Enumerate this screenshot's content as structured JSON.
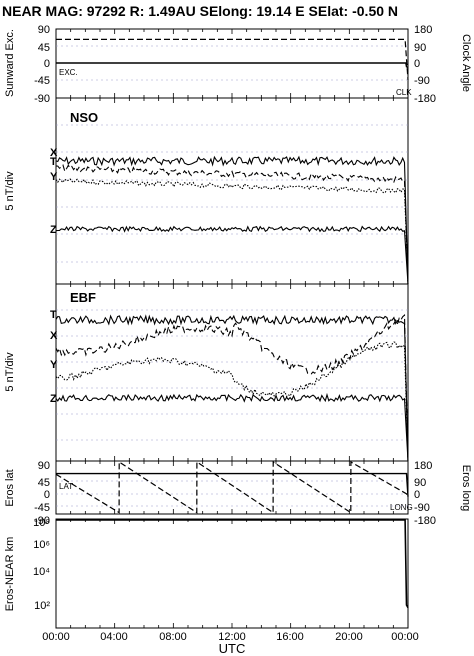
{
  "title": "NEAR MAG: 97292  R: 1.49AU  SElong:   19.14 E  SElat:   -0.50 N",
  "x_axis": {
    "label": "UTC",
    "ticks": [
      "00:00",
      "04:00",
      "08:00",
      "12:00",
      "16:00",
      "20:00",
      "00:00"
    ]
  },
  "chart_data": [
    {
      "type": "line",
      "panel": "sunward-clock",
      "ylabel_left": "Sunward Exc.",
      "ylabel_right": "Clock Angle",
      "left_ticks": [
        "90",
        "45",
        "0",
        "-45",
        "-90"
      ],
      "right_ticks": [
        "180",
        "90",
        "0",
        "-90",
        "-180"
      ],
      "ylim_left": [
        -90,
        90
      ],
      "ylim_right": [
        -180,
        180
      ],
      "x_range_hours": [
        0,
        24
      ],
      "grid": "dotted horizontal",
      "series": [
        {
          "name": "EXC.",
          "style": "solid",
          "x": [
            0,
            23.85,
            23.9,
            24
          ],
          "values": [
            0,
            0,
            -10,
            -12
          ]
        },
        {
          "name": "CLK",
          "style": "dashed",
          "x": [
            0,
            23.8,
            23.9,
            24
          ],
          "values": [
            125,
            125,
            20,
            -90
          ]
        }
      ]
    },
    {
      "type": "line",
      "panel": "NSO",
      "name": "NSO",
      "ylabel": "5 nT/div",
      "x_range_hours": [
        0,
        24
      ],
      "grid": "dotted horizontal",
      "series": [
        {
          "name": "T",
          "style": "solid",
          "level_px": 161,
          "noise": 5
        },
        {
          "name": "X",
          "style": "dashed",
          "level_px": 168,
          "noise": 4,
          "drift": 12
        },
        {
          "name": "Y",
          "style": "dotted",
          "level_px": 181,
          "noise": 3,
          "drift": 10
        },
        {
          "name": "Z",
          "style": "solid",
          "level_px": 229,
          "noise": 3
        }
      ]
    },
    {
      "type": "line",
      "panel": "EBF",
      "name": "EBF",
      "ylabel": "5 nT/div",
      "x_range_hours": [
        0,
        24
      ],
      "grid": "dotted horizontal",
      "series": [
        {
          "name": "T",
          "style": "solid",
          "level_px": 320,
          "noise": 5
        },
        {
          "name": "X",
          "style": "dashed",
          "level_px": 340,
          "noise": 5,
          "swing": 30
        },
        {
          "name": "Y",
          "style": "dotted",
          "level_px": 370,
          "noise": 4,
          "swing": 25
        },
        {
          "name": "Z",
          "style": "solid",
          "level_px": 398,
          "noise": 4
        }
      ]
    },
    {
      "type": "line",
      "panel": "eros-lat-long",
      "ylabel_left": "Eros lat",
      "ylabel_right": "Eros long",
      "left_ticks": [
        "90",
        "45",
        "0",
        "-45",
        "-90"
      ],
      "right_ticks": [
        "180",
        "90",
        "0",
        "-90",
        "-180"
      ],
      "ylim_left": [
        -90,
        90
      ],
      "ylim_right": [
        -180,
        180
      ],
      "x_range_hours": [
        0,
        24
      ],
      "grid": "dotted horizontal",
      "series": [
        {
          "name": "LAT",
          "style": "solid",
          "x": [
            0,
            23.9,
            24
          ],
          "values": [
            50,
            50,
            -30
          ]
        },
        {
          "name": "LONG",
          "style": "dashed",
          "x": [
            0,
            4.3,
            4.31,
            9.6,
            9.61,
            14.8,
            14.81,
            20.1,
            20.11,
            23.9,
            24
          ],
          "values": [
            95,
            -170,
            180,
            -170,
            180,
            -170,
            180,
            -170,
            180,
            -40,
            -60
          ]
        }
      ]
    },
    {
      "type": "line",
      "panel": "eros-near-km",
      "ylabel": "Eros-NEAR km",
      "yscale": "log",
      "ylim": [
        10,
        100000000
      ],
      "y_ticks": [
        "10⁸",
        "10⁶",
        "10⁴",
        "10²"
      ],
      "x_range_hours": [
        0,
        24
      ],
      "series": [
        {
          "name": "",
          "style": "solid",
          "x": [
            0,
            23.8,
            23.9,
            24
          ],
          "values": [
            120000000,
            120000000,
            300,
            200
          ]
        }
      ]
    }
  ]
}
